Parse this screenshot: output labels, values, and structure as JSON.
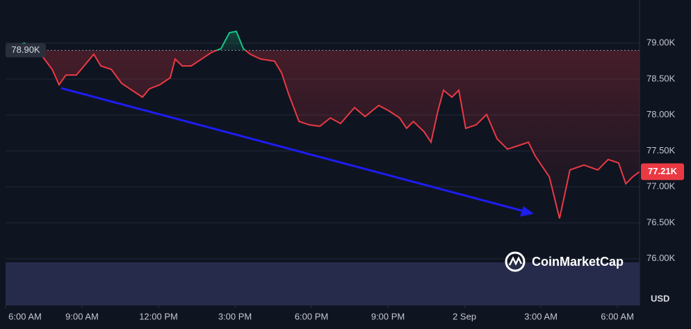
{
  "chart_data": {
    "type": "line",
    "x": [
      0.0,
      0.74,
      1.42,
      1.83,
      2.1,
      2.37,
      2.78,
      3.19,
      3.46,
      3.74,
      4.15,
      4.55,
      4.96,
      5.37,
      5.64,
      6.05,
      6.46,
      6.65,
      6.93,
      7.28,
      7.69,
      8.1,
      8.45,
      8.78,
      9.05,
      9.33,
      9.6,
      10.01,
      10.55,
      10.83,
      11.1,
      11.51,
      11.92,
      12.33,
      12.74,
      13.14,
      13.69,
      14.1,
      14.64,
      15.05,
      15.46,
      15.73,
      16.0,
      16.42,
      16.69,
      16.96,
      17.18,
      17.51,
      17.78,
      18.05,
      18.46,
      18.87,
      19.28,
      19.69,
      20.1,
      20.51,
      20.78,
      21.33,
      21.73,
      22.14,
      22.69,
      23.23,
      23.64,
      24.05,
      24.33,
      24.6,
      24.87
    ],
    "values": [
      78904,
      79000,
      78826,
      78634,
      78421,
      78556,
      78556,
      78730,
      78846,
      78682,
      78634,
      78441,
      78344,
      78248,
      78364,
      78421,
      78518,
      78778,
      78682,
      78682,
      78778,
      78875,
      78923,
      79145,
      79164,
      78923,
      78846,
      78778,
      78749,
      78585,
      78296,
      77910,
      77862,
      77843,
      77959,
      77881,
      78103,
      77978,
      78132,
      78055,
      77959,
      77814,
      77910,
      77766,
      77621,
      78055,
      78344,
      78248,
      78344,
      77814,
      77862,
      78007,
      77669,
      77524,
      77572,
      77621,
      77428,
      77139,
      76560,
      77235,
      77303,
      77235,
      77380,
      77332,
      77042,
      77139,
      77210
    ],
    "color_up": "#16c784",
    "color_down": "#ea3943",
    "baseline": {
      "value": 78900,
      "label": "78.90K"
    },
    "last_price": {
      "value": 77210,
      "label": "77.21K"
    },
    "xlim": [
      0,
      24.87
    ],
    "xticks": [
      {
        "value": 0,
        "label": "6:00 AM"
      },
      {
        "value": 3,
        "label": "9:00 AM"
      },
      {
        "value": 6,
        "label": "12:00 PM"
      },
      {
        "value": 9,
        "label": "3:00 PM"
      },
      {
        "value": 12,
        "label": "6:00 PM"
      },
      {
        "value": 15,
        "label": "9:00 PM"
      },
      {
        "value": 18,
        "label": "2 Sep"
      },
      {
        "value": 21,
        "label": "3:00 AM"
      },
      {
        "value": 24,
        "label": "6:00 AM"
      }
    ],
    "ylim": [
      75350,
      79600
    ],
    "yticks": [
      {
        "value": 76000,
        "label": "76.00K"
      },
      {
        "value": 76500,
        "label": "76.50K"
      },
      {
        "value": 77000,
        "label": "77.00K"
      },
      {
        "value": 77500,
        "label": "77.50K"
      },
      {
        "value": 78000,
        "label": "78.00K"
      },
      {
        "value": 78500,
        "label": "78.50K"
      },
      {
        "value": 79000,
        "label": "79.00K"
      }
    ],
    "y_axis_label": "USD",
    "watermark": "CoinMarketCap",
    "grid": true
  }
}
